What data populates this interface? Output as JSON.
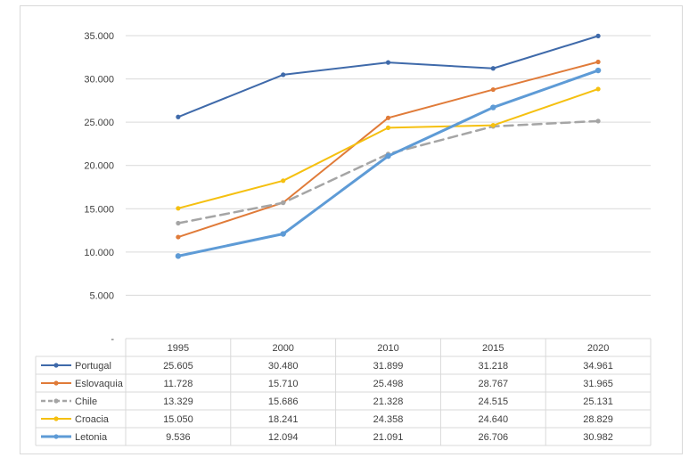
{
  "chart_data": {
    "type": "line",
    "categories": [
      "1995",
      "2000",
      "2010",
      "2015",
      "2020"
    ],
    "yticks": [
      "-",
      "5.000",
      "10.000",
      "15.000",
      "20.000",
      "25.000",
      "30.000",
      "35.000"
    ],
    "ylim": [
      0,
      35000
    ],
    "grid": true,
    "legend": "data-table",
    "series": [
      {
        "name": "Portugal",
        "color": "#3f6aaa",
        "dash": false,
        "width": 2,
        "marker": "dot",
        "values": [
          25605,
          30480,
          31899,
          31218,
          34961
        ],
        "labels": [
          "25.605",
          "30.480",
          "31.899",
          "31.218",
          "34.961"
        ]
      },
      {
        "name": "Eslovaquia",
        "color": "#e07b39",
        "dash": false,
        "width": 2,
        "marker": "dot",
        "values": [
          11728,
          15710,
          25498,
          28767,
          31965
        ],
        "labels": [
          "11.728",
          "15.710",
          "25.498",
          "28.767",
          "31.965"
        ]
      },
      {
        "name": "Chile",
        "color": "#a5a5a5",
        "dash": true,
        "width": 2.5,
        "marker": "dot",
        "values": [
          13329,
          15686,
          21328,
          24515,
          25131
        ],
        "labels": [
          "13.329",
          "15.686",
          "21.328",
          "24.515",
          "25.131"
        ]
      },
      {
        "name": "Croacia",
        "color": "#f5c010",
        "dash": false,
        "width": 2,
        "marker": "dot",
        "values": [
          15050,
          18241,
          24358,
          24640,
          28829
        ],
        "labels": [
          "15.050",
          "18.241",
          "24.358",
          "24.640",
          "28.829"
        ]
      },
      {
        "name": "Letonia",
        "color": "#5e9bd6",
        "dash": false,
        "width": 3,
        "marker": "dot",
        "values": [
          9536,
          12094,
          21091,
          26706,
          30982
        ],
        "labels": [
          "9.536",
          "12.094",
          "21.091",
          "26.706",
          "30.982"
        ]
      }
    ]
  }
}
